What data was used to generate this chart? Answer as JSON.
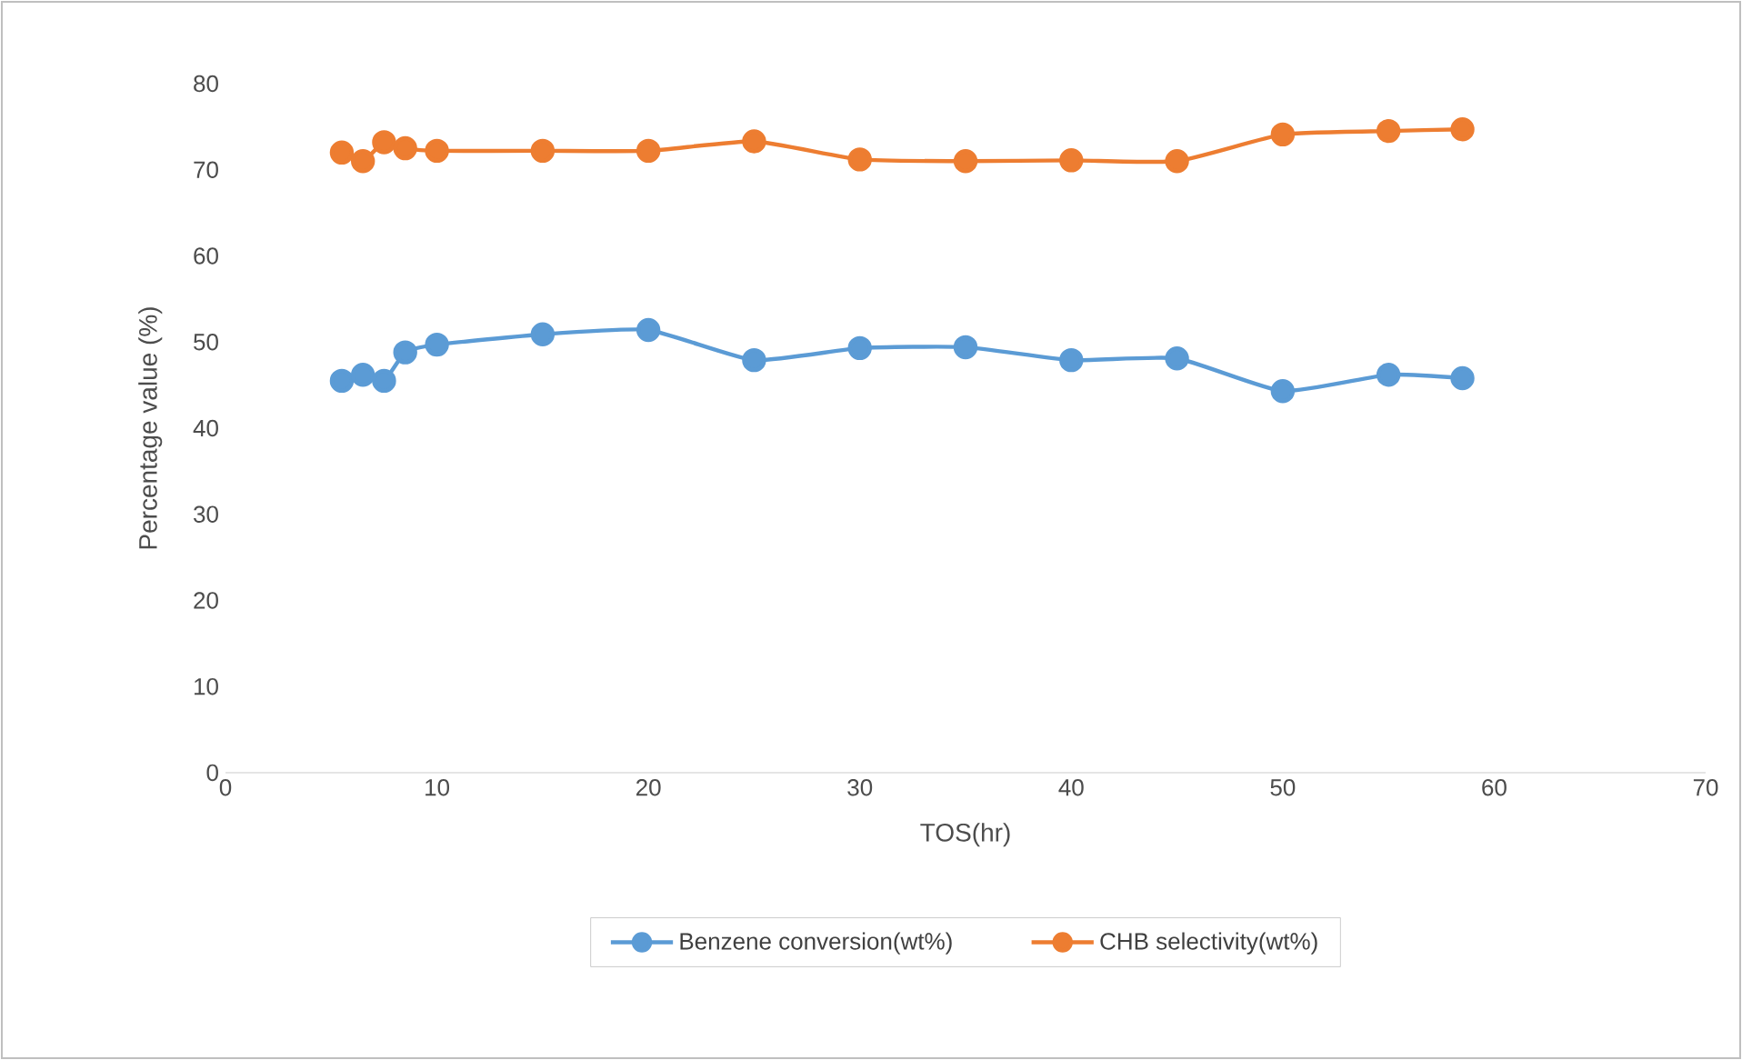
{
  "chart_data": {
    "type": "line",
    "xlabel": "TOS(hr)",
    "ylabel": "Percentage value (%)",
    "x": [
      5.5,
      6.5,
      7.5,
      8.5,
      10,
      15,
      20,
      25,
      30,
      35,
      40,
      45,
      50,
      55,
      58.5
    ],
    "series": [
      {
        "name": "Benzene conversion(wt%)",
        "color": "#5b9bd5",
        "values": [
          45.5,
          46.2,
          45.5,
          48.8,
          49.7,
          50.9,
          51.4,
          47.9,
          49.3,
          49.4,
          47.9,
          48.1,
          44.3,
          46.2,
          45.8
        ]
      },
      {
        "name": "CHB selectivity(wt%)",
        "color": "#ed7d31",
        "values": [
          72.0,
          71.0,
          73.2,
          72.5,
          72.2,
          72.2,
          72.2,
          73.3,
          71.2,
          71.0,
          71.1,
          71.0,
          74.1,
          74.5,
          74.7
        ]
      }
    ],
    "xlim": [
      0,
      70
    ],
    "xticks": [
      0,
      10,
      20,
      30,
      40,
      50,
      60,
      70
    ],
    "ylim": [
      0,
      80
    ],
    "yticks": [
      0,
      10,
      20,
      30,
      40,
      50,
      60,
      70,
      80
    ],
    "grid": false,
    "legend": "bottom",
    "marker": "circle",
    "line_style": "solid"
  }
}
